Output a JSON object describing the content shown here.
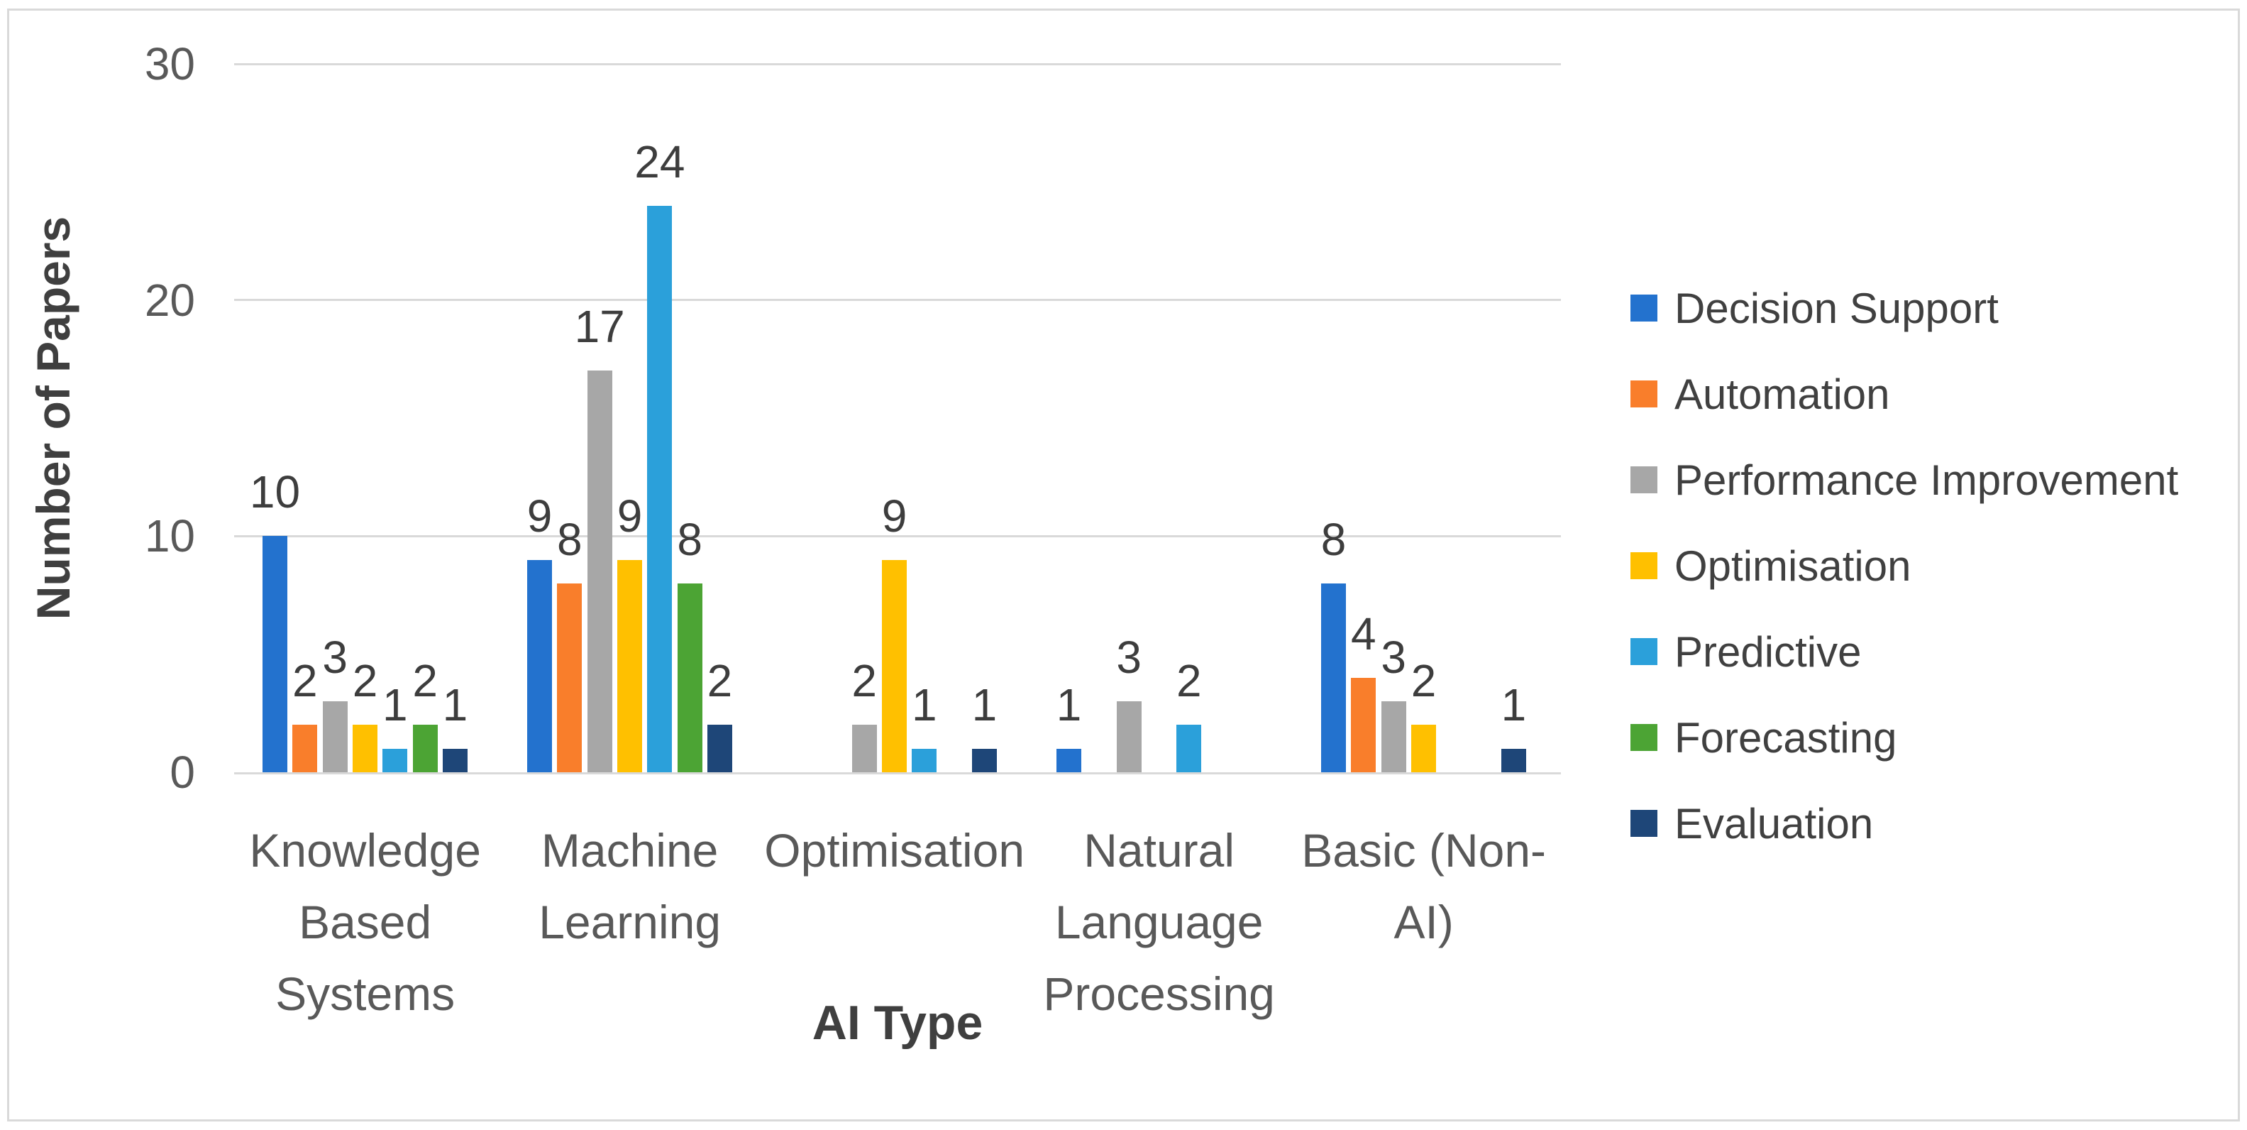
{
  "figure": {
    "xlabel": "AI Type",
    "ylabel": "Number of Papers"
  },
  "chart_data": {
    "type": "bar",
    "title": "",
    "xlabel": "AI Type",
    "ylabel": "Number of Papers",
    "ylim": [
      0,
      30
    ],
    "y_ticks": [
      0,
      10,
      20,
      30
    ],
    "grid": true,
    "legend_position": "right",
    "data_labels": true,
    "categories": [
      "Knowledge Based Systems",
      "Machine Learning",
      "Optimisation",
      "Natural Language Processing",
      "Basic (Non-AI)"
    ],
    "category_label_lines": [
      [
        "Knowledge",
        "Based",
        "Systems"
      ],
      [
        "Machine",
        "Learning"
      ],
      [
        "Optimisation"
      ],
      [
        "Natural",
        "Language",
        "Processing"
      ],
      [
        "Basic (Non-AI)"
      ]
    ],
    "series": [
      {
        "name": "Decision Support",
        "color": "#2372CE",
        "values": [
          10,
          9,
          0,
          1,
          8
        ]
      },
      {
        "name": "Automation",
        "color": "#F97E2B",
        "values": [
          2,
          8,
          0,
          0,
          4
        ]
      },
      {
        "name": "Performance Improvement",
        "color": "#A7A7A7",
        "values": [
          3,
          17,
          2,
          3,
          3
        ]
      },
      {
        "name": "Optimisation",
        "color": "#FFC000",
        "values": [
          2,
          9,
          9,
          0,
          2
        ]
      },
      {
        "name": "Predictive",
        "color": "#2BA0DA",
        "values": [
          1,
          24,
          1,
          2,
          0
        ]
      },
      {
        "name": "Forecasting",
        "color": "#4CA434",
        "values": [
          2,
          8,
          0,
          0,
          0
        ]
      },
      {
        "name": "Evaluation",
        "color": "#1E4678",
        "values": [
          1,
          2,
          1,
          0,
          1
        ]
      }
    ],
    "colors": {
      "gridline": "#D9D9D9",
      "axis_line": "#D9D9D9",
      "tick_text": "#595959",
      "data_label_text": "#3D3D3D",
      "legend_text": "#404040",
      "axis_title_text": "#3F3F3F"
    }
  }
}
